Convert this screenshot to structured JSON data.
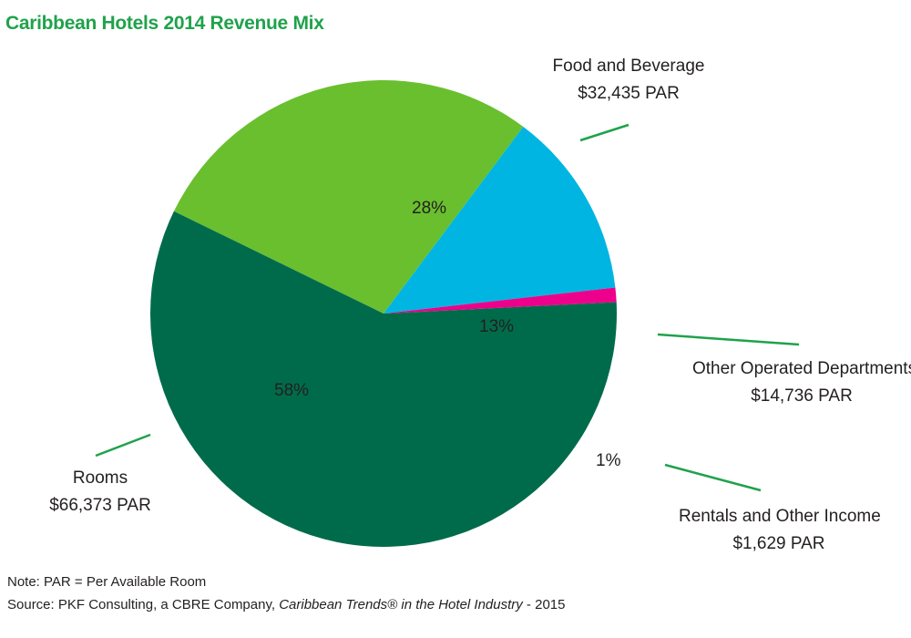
{
  "chart_data": {
    "type": "pie",
    "title": "Caribbean Hotels 2014 Revenue Mix",
    "slices": [
      {
        "name": "Food and Beverage",
        "value": 28,
        "pct_label": "28%",
        "par": "$32,435 PAR",
        "color": "#6abf2f"
      },
      {
        "name": "Other Operated Departments",
        "value": 13,
        "pct_label": "13%",
        "par": "$14,736 PAR",
        "color": "#00b5e2"
      },
      {
        "name": "Rentals and Other Income",
        "value": 1,
        "pct_label": "1%",
        "par": "$1,629 PAR",
        "color": "#ec008c"
      },
      {
        "name": "Rooms",
        "value": 58,
        "pct_label": "58%",
        "par": "$66,373 PAR",
        "color": "#006b4a"
      }
    ],
    "leader_color": "#1fa24b"
  },
  "notes": {
    "note": "Note: PAR = Per Available Room",
    "source_prefix": "Source: PKF Consulting, a CBRE Company, ",
    "source_title": "Caribbean Trends® in the Hotel Industry",
    "source_suffix": " - 2015"
  }
}
